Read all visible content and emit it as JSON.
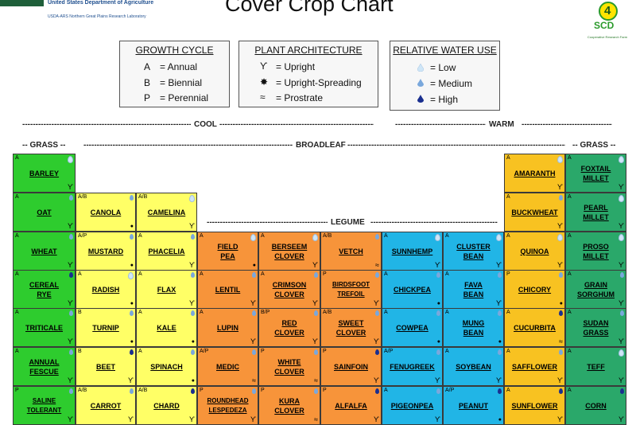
{
  "header": {
    "agency": "United States Department of Agriculture",
    "lab": "USDA-ARS Northern Great Plains Research Laboratory",
    "title": "Cover Crop Chart",
    "logo_number": "4",
    "logo_text": "SCD",
    "logo_sub": "Cooperative Research Farm"
  },
  "legends": {
    "growth_cycle": {
      "title": "GROWTH CYCLE",
      "items": [
        {
          "key": "A",
          "label": "= Annual"
        },
        {
          "key": "B",
          "label": "= Biennial"
        },
        {
          "key": "P",
          "label": "= Perennial"
        }
      ]
    },
    "plant_architecture": {
      "title": "PLANT ARCHITECTURE",
      "items": [
        {
          "sym": "ϒ",
          "label": "= Upright"
        },
        {
          "sym": "✸",
          "label": "= Upright-Spreading"
        },
        {
          "sym": "≈",
          "label": "= Prostrate"
        }
      ]
    },
    "water_use": {
      "title": "RELATIVE WATER USE",
      "items": [
        {
          "label": "= Low"
        },
        {
          "label": "= Medium"
        },
        {
          "label": "= High"
        }
      ]
    }
  },
  "group_labels": {
    "cool": "COOL",
    "warm": "WARM",
    "grass_left": "-- GRASS --",
    "broadleaf": "BROADLEAF",
    "legume": "LEGUME",
    "grass_right": "-- GRASS --"
  },
  "colors": {
    "grass": "#2ecc2e",
    "broadleaf": "#ffff66",
    "legume_orange": "#f7943a",
    "legume_blue": "#21b5e6",
    "warm_broadleaf": "#f8c221",
    "warm_grass": "#2aa86a",
    "water_low": "#cfe6f7",
    "water_medium": "#7aa8dc",
    "water_high": "#1a2f8f"
  },
  "chart_data": {
    "type": "table",
    "title": "Cover Crop Chart",
    "columns": [
      "cool grass",
      "cool broadleaf",
      "cool broadleaf",
      "cool legume",
      "cool legume",
      "cool legume",
      "warm legume",
      "warm legume",
      "warm broadleaf",
      "warm grass"
    ],
    "cells": [
      {
        "col": 0,
        "row": 0,
        "name": "BARLEY",
        "cycle": "A",
        "water": "low",
        "arch": "upright",
        "group": "grass"
      },
      {
        "col": 0,
        "row": 1,
        "name": "OAT",
        "cycle": "A",
        "water": "medium",
        "arch": "upright",
        "group": "grass"
      },
      {
        "col": 0,
        "row": 2,
        "name": "WHEAT",
        "cycle": "A",
        "water": "medium",
        "arch": "upright",
        "group": "grass"
      },
      {
        "col": 0,
        "row": 3,
        "name": "CEREAL RYE",
        "cycle": "A",
        "water": "high",
        "arch": "upright",
        "group": "grass"
      },
      {
        "col": 0,
        "row": 4,
        "name": "TRITICALE",
        "cycle": "A",
        "water": "medium",
        "arch": "upright",
        "group": "grass"
      },
      {
        "col": 0,
        "row": 5,
        "name": "ANNUAL FESCUE",
        "cycle": "A",
        "water": "medium",
        "arch": "upright",
        "group": "grass"
      },
      {
        "col": 0,
        "row": 6,
        "name": "SALINE TOLERANT",
        "cycle": "P",
        "water": "medium",
        "arch": "upright",
        "group": "grass"
      },
      {
        "col": 1,
        "row": 1,
        "name": "CANOLA",
        "cycle": "A/B",
        "water": "medium",
        "arch": "spreading",
        "group": "broadleaf"
      },
      {
        "col": 1,
        "row": 2,
        "name": "MUSTARD",
        "cycle": "A/P",
        "water": "medium",
        "arch": "spreading",
        "group": "broadleaf"
      },
      {
        "col": 1,
        "row": 3,
        "name": "RADISH",
        "cycle": "A",
        "water": "low",
        "arch": "spreading",
        "group": "broadleaf"
      },
      {
        "col": 1,
        "row": 4,
        "name": "TURNIP",
        "cycle": "B",
        "water": "medium",
        "arch": "spreading",
        "group": "broadleaf"
      },
      {
        "col": 1,
        "row": 5,
        "name": "BEET",
        "cycle": "B",
        "water": "high",
        "arch": "upright",
        "group": "broadleaf"
      },
      {
        "col": 1,
        "row": 6,
        "name": "CARROT",
        "cycle": "A/B",
        "water": "medium",
        "arch": "upright",
        "group": "broadleaf"
      },
      {
        "col": 2,
        "row": 1,
        "name": "CAMELINA",
        "cycle": "A/B",
        "water": "low",
        "arch": "upright",
        "group": "broadleaf"
      },
      {
        "col": 2,
        "row": 2,
        "name": "PHACELIA",
        "cycle": "A",
        "water": "medium",
        "arch": "upright",
        "group": "broadleaf"
      },
      {
        "col": 2,
        "row": 3,
        "name": "FLAX",
        "cycle": "A",
        "water": "medium",
        "arch": "upright",
        "group": "broadleaf"
      },
      {
        "col": 2,
        "row": 4,
        "name": "KALE",
        "cycle": "A",
        "water": "medium",
        "arch": "spreading",
        "group": "broadleaf"
      },
      {
        "col": 2,
        "row": 5,
        "name": "SPINACH",
        "cycle": "A",
        "water": "medium",
        "arch": "spreading",
        "group": "broadleaf"
      },
      {
        "col": 2,
        "row": 6,
        "name": "CHARD",
        "cycle": "A/B",
        "water": "high",
        "arch": "upright",
        "group": "broadleaf"
      },
      {
        "col": 3,
        "row": 2,
        "name": "FIELD PEA",
        "cycle": "A",
        "water": "low",
        "arch": "spreading",
        "group": "legume_orange"
      },
      {
        "col": 3,
        "row": 3,
        "name": "LENTIL",
        "cycle": "A",
        "water": "medium",
        "arch": "upright",
        "group": "legume_orange"
      },
      {
        "col": 3,
        "row": 4,
        "name": "LUPIN",
        "cycle": "A",
        "water": "medium",
        "arch": "upright",
        "group": "legume_orange"
      },
      {
        "col": 3,
        "row": 5,
        "name": "MEDIC",
        "cycle": "A/P",
        "water": "medium",
        "arch": "prostrate",
        "group": "legume_orange"
      },
      {
        "col": 3,
        "row": 6,
        "name": "ROUNDHEAD LESPEDEZA",
        "cycle": "P",
        "water": "medium",
        "arch": "upright",
        "group": "legume_orange"
      },
      {
        "col": 4,
        "row": 2,
        "name": "BERSEEM CLOVER",
        "cycle": "A",
        "water": "low",
        "arch": "upright",
        "group": "legume_orange"
      },
      {
        "col": 4,
        "row": 3,
        "name": "CRIMSON CLOVER",
        "cycle": "A",
        "water": "medium",
        "arch": "upright",
        "group": "legume_orange"
      },
      {
        "col": 4,
        "row": 4,
        "name": "RED CLOVER",
        "cycle": "B/P",
        "water": "medium",
        "arch": "upright",
        "group": "legume_orange"
      },
      {
        "col": 4,
        "row": 5,
        "name": "WHITE CLOVER",
        "cycle": "P",
        "water": "medium",
        "arch": "prostrate",
        "group": "legume_orange"
      },
      {
        "col": 4,
        "row": 6,
        "name": "KURA CLOVER",
        "cycle": "P",
        "water": "medium",
        "arch": "prostrate",
        "group": "legume_orange"
      },
      {
        "col": 5,
        "row": 2,
        "name": "VETCH",
        "cycle": "A/B",
        "water": "medium",
        "arch": "prostrate",
        "group": "legume_orange"
      },
      {
        "col": 5,
        "row": 3,
        "name": "BIRDSFOOT TREFOIL",
        "cycle": "P",
        "water": "medium",
        "arch": "upright",
        "group": "legume_orange"
      },
      {
        "col": 5,
        "row": 4,
        "name": "SWEET CLOVER",
        "cycle": "A/B",
        "water": "medium",
        "arch": "upright",
        "group": "legume_orange"
      },
      {
        "col": 5,
        "row": 5,
        "name": "SAINFOIN",
        "cycle": "P",
        "water": "high",
        "arch": "upright",
        "group": "legume_orange"
      },
      {
        "col": 5,
        "row": 6,
        "name": "ALFALFA",
        "cycle": "P",
        "water": "high",
        "arch": "upright",
        "group": "legume_orange"
      },
      {
        "col": 6,
        "row": 2,
        "name": "SUNNHEMP",
        "cycle": "A",
        "water": "low",
        "arch": "upright",
        "group": "legume_blue"
      },
      {
        "col": 6,
        "row": 3,
        "name": "CHICKPEA",
        "cycle": "A",
        "water": "medium",
        "arch": "spreading",
        "group": "legume_blue"
      },
      {
        "col": 6,
        "row": 4,
        "name": "COWPEA",
        "cycle": "A",
        "water": "medium",
        "arch": "spreading",
        "group": "legume_blue"
      },
      {
        "col": 6,
        "row": 5,
        "name": "FENUGREEK",
        "cycle": "A/P",
        "water": "medium",
        "arch": "upright",
        "group": "legume_blue"
      },
      {
        "col": 6,
        "row": 6,
        "name": "PIGEONPEA",
        "cycle": "A",
        "water": "medium",
        "arch": "upright",
        "group": "legume_blue"
      },
      {
        "col": 7,
        "row": 2,
        "name": "CLUSTER BEAN",
        "cycle": "A",
        "water": "low",
        "arch": "upright",
        "group": "legume_blue"
      },
      {
        "col": 7,
        "row": 3,
        "name": "FAVA BEAN",
        "cycle": "A",
        "water": "medium",
        "arch": "upright",
        "group": "legume_blue"
      },
      {
        "col": 7,
        "row": 4,
        "name": "MUNG BEAN",
        "cycle": "A",
        "water": "medium",
        "arch": "spreading",
        "group": "legume_blue"
      },
      {
        "col": 7,
        "row": 5,
        "name": "SOYBEAN",
        "cycle": "A",
        "water": "medium",
        "arch": "upright",
        "group": "legume_blue"
      },
      {
        "col": 7,
        "row": 6,
        "name": "PEANUT",
        "cycle": "A/P",
        "water": "high",
        "arch": "spreading",
        "group": "legume_blue"
      },
      {
        "col": 8,
        "row": 0,
        "name": "AMARANTH",
        "cycle": "A",
        "water": "low",
        "arch": "upright",
        "group": "warm_broadleaf"
      },
      {
        "col": 8,
        "row": 1,
        "name": "BUCKWHEAT",
        "cycle": "A",
        "water": "medium",
        "arch": "upright",
        "group": "warm_broadleaf"
      },
      {
        "col": 8,
        "row": 2,
        "name": "QUINOA",
        "cycle": "A",
        "water": "low",
        "arch": "upright",
        "group": "warm_broadleaf"
      },
      {
        "col": 8,
        "row": 3,
        "name": "CHICORY",
        "cycle": "P",
        "water": "medium",
        "arch": "spreading",
        "group": "warm_broadleaf"
      },
      {
        "col": 8,
        "row": 4,
        "name": "CUCURBITA",
        "cycle": "A",
        "water": "high",
        "arch": "prostrate",
        "group": "warm_broadleaf"
      },
      {
        "col": 8,
        "row": 5,
        "name": "SAFFLOWER",
        "cycle": "A",
        "water": "medium",
        "arch": "upright",
        "group": "warm_broadleaf"
      },
      {
        "col": 8,
        "row": 6,
        "name": "SUNFLOWER",
        "cycle": "A",
        "water": "high",
        "arch": "upright",
        "group": "warm_broadleaf"
      },
      {
        "col": 9,
        "row": 0,
        "name": "FOXTAIL MILLET",
        "cycle": "A",
        "water": "low",
        "arch": "upright",
        "group": "warm_grass"
      },
      {
        "col": 9,
        "row": 1,
        "name": "PEARL MILLET",
        "cycle": "A",
        "water": "low",
        "arch": "upright",
        "group": "warm_grass"
      },
      {
        "col": 9,
        "row": 2,
        "name": "PROSO MILLET",
        "cycle": "A",
        "water": "low",
        "arch": "upright",
        "group": "warm_grass"
      },
      {
        "col": 9,
        "row": 3,
        "name": "GRAIN SORGHUM",
        "cycle": "A",
        "water": "medium",
        "arch": "upright",
        "group": "warm_grass"
      },
      {
        "col": 9,
        "row": 4,
        "name": "SUDAN GRASS",
        "cycle": "A",
        "water": "medium",
        "arch": "upright",
        "group": "warm_grass"
      },
      {
        "col": 9,
        "row": 5,
        "name": "TEFF",
        "cycle": "A",
        "water": "low",
        "arch": "upright",
        "group": "warm_grass"
      },
      {
        "col": 9,
        "row": 6,
        "name": "CORN",
        "cycle": "A",
        "water": "high",
        "arch": "upright",
        "group": "warm_grass"
      }
    ]
  }
}
